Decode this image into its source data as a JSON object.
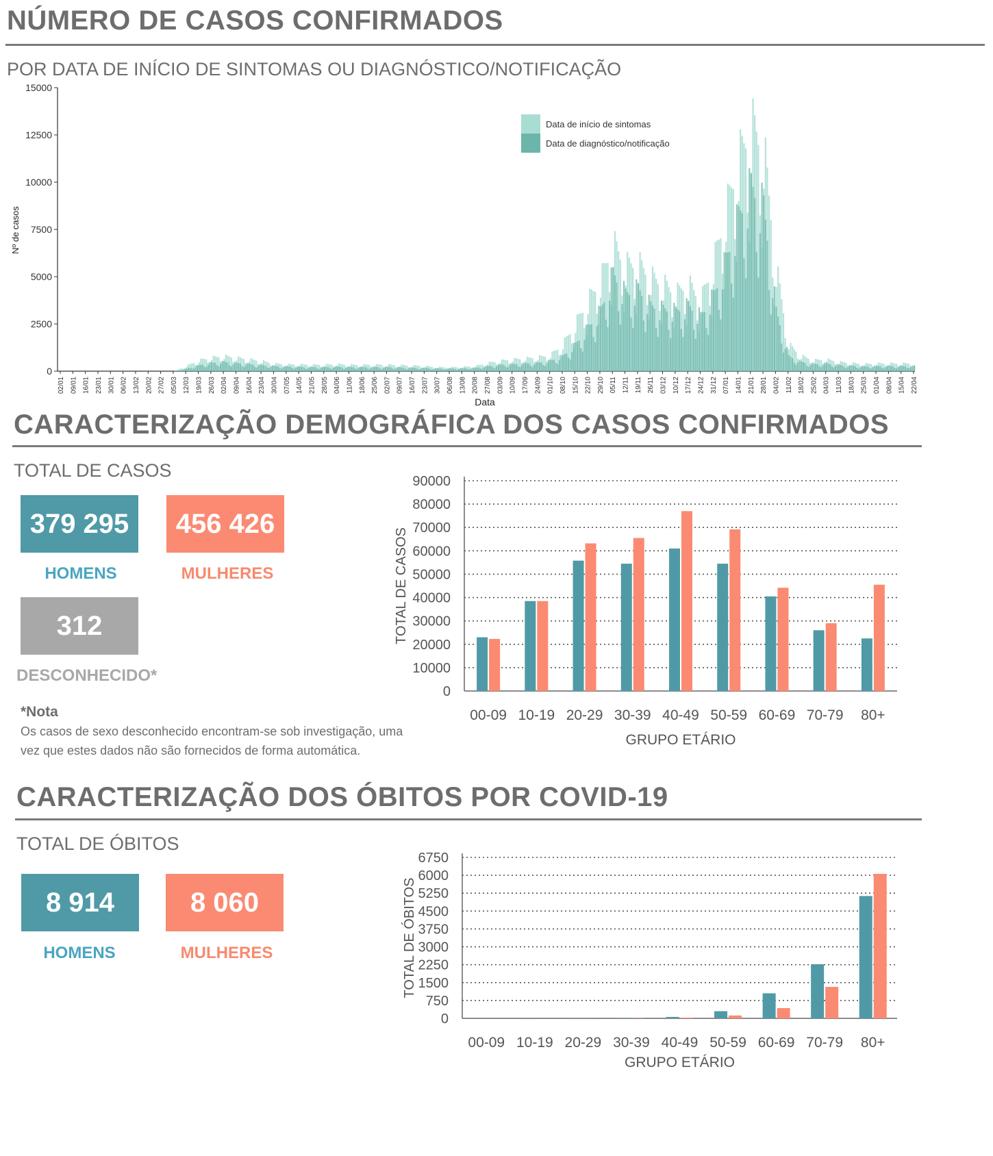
{
  "section1": {
    "title": "NÚMERO DE CASOS CONFIRMADOS",
    "subtitle": "POR DATA DE INÍCIO DE SINTOMAS OU DIAGNÓSTICO/NOTIFICAÇÃO"
  },
  "section2": {
    "title": "CARACTERIZAÇÃO DEMOGRÁFICA DOS CASOS CONFIRMADOS",
    "subtitle": "TOTAL DE CASOS",
    "men_value": "379 295",
    "men_label": "HOMENS",
    "women_value": "456 426",
    "women_label": "MULHERES",
    "unknown_value": "312",
    "unknown_label": "DESCONHECIDO*",
    "note_title": "*Nota",
    "note_text": "Os casos de sexo desconhecido encontram-se sob investigação, uma vez que estes dados não são fornecidos de forma automática."
  },
  "section3": {
    "title": "CARACTERIZAÇÃO DOS ÓBITOS POR COVID-19",
    "subtitle": "TOTAL DE ÓBITOS",
    "men_value": "8 914",
    "men_label": "HOMENS",
    "women_value": "8 060",
    "women_label": "MULHERES"
  },
  "colors": {
    "men": "#4f9aa6",
    "women": "#fb8a72",
    "unknown": "#a8a8a8",
    "symptom_onset": "#a8ddd4",
    "diagnosis": "#6cb5aa"
  },
  "chart_data": [
    {
      "type": "bar",
      "ylabel": "Nº de casos",
      "xlabel": "Data",
      "ylim": [
        0,
        15000
      ],
      "yticks": [
        0,
        2500,
        5000,
        7500,
        10000,
        12500,
        15000
      ],
      "x_ticks": [
        "02/01",
        "09/01",
        "16/01",
        "23/01",
        "30/01",
        "06/02",
        "13/02",
        "20/02",
        "27/02",
        "05/03",
        "12/03",
        "19/03",
        "26/03",
        "02/04",
        "09/04",
        "16/04",
        "23/04",
        "30/04",
        "07/05",
        "14/05",
        "21/05",
        "28/05",
        "04/06",
        "11/06",
        "18/06",
        "25/06",
        "02/07",
        "09/07",
        "16/07",
        "23/07",
        "30/07",
        "06/08",
        "13/08",
        "20/08",
        "27/08",
        "03/09",
        "10/09",
        "17/09",
        "24/09",
        "01/10",
        "08/10",
        "15/10",
        "22/10",
        "29/10",
        "05/11",
        "12/11",
        "19/11",
        "26/11",
        "03/12",
        "10/12",
        "17/12",
        "24/12",
        "31/12",
        "07/01",
        "14/01",
        "21/01",
        "28/01",
        "04/02",
        "11/02",
        "18/02",
        "25/02",
        "04/03",
        "11/03",
        "18/03",
        "25/03",
        "01/04",
        "08/04",
        "15/04",
        "22/04"
      ],
      "legend_position": "top-right",
      "series": [
        {
          "name": "Data de início de sintomas",
          "weekly_peak_values": [
            0,
            0,
            0,
            0,
            0,
            0,
            0,
            0,
            0,
            0,
            300,
            650,
            800,
            900,
            800,
            700,
            600,
            450,
            400,
            400,
            380,
            380,
            420,
            380,
            380,
            380,
            380,
            360,
            340,
            300,
            240,
            230,
            250,
            300,
            480,
            620,
            700,
            760,
            820,
            950,
            1600,
            2800,
            4200,
            5400,
            7600,
            6300,
            6400,
            5600,
            5200,
            4600,
            5200,
            4200,
            6400,
            9500,
            12500,
            14600,
            13400,
            6200,
            1600,
            900,
            650,
            700,
            550,
            480,
            420,
            460,
            460,
            460,
            460
          ]
        },
        {
          "name": "Data de diagnóstico/notificação",
          "weekly_peak_values": [
            0,
            0,
            0,
            0,
            0,
            0,
            0,
            0,
            0,
            0,
            150,
            350,
            500,
            550,
            480,
            420,
            360,
            300,
            280,
            260,
            240,
            240,
            260,
            240,
            240,
            240,
            240,
            220,
            200,
            190,
            160,
            160,
            170,
            200,
            300,
            380,
            420,
            460,
            500,
            620,
            900,
            1600,
            2600,
            3600,
            5800,
            4600,
            4900,
            3900,
            3700,
            3600,
            3900,
            3300,
            4500,
            6600,
            9200,
            11000,
            9800,
            3600,
            900,
            550,
            420,
            460,
            360,
            320,
            280,
            300,
            300,
            300,
            300
          ]
        }
      ]
    },
    {
      "type": "bar",
      "xlabel": "GRUPO ETÁRIO",
      "ylabel": "TOTAL DE CASOS",
      "ylim": [
        0,
        90000
      ],
      "yticks": [
        "0",
        "10000",
        "20000",
        "30000",
        "40000",
        "50000",
        "60000",
        "70000",
        "80000",
        "90000"
      ],
      "grid": true,
      "categories": [
        "00-09",
        "10-19",
        "20-29",
        "30-39",
        "40-49",
        "50-59",
        "60-69",
        "70-79",
        "80+"
      ],
      "series": [
        {
          "name": "HOMENS",
          "values": [
            23000,
            38500,
            55800,
            54500,
            61000,
            54500,
            40500,
            26000,
            22500
          ]
        },
        {
          "name": "MULHERES",
          "values": [
            22300,
            38500,
            63200,
            65500,
            77000,
            69200,
            44200,
            29000,
            45500
          ]
        }
      ]
    },
    {
      "type": "bar",
      "xlabel": "GRUPO ETÁRIO",
      "ylabel": "TOTAL DE ÓBITOS",
      "ylim": [
        0,
        6750
      ],
      "yticks": [
        "0",
        "750",
        "1500",
        "2250",
        "3000",
        "3750",
        "4500",
        "5250",
        "6000",
        "6750"
      ],
      "grid": true,
      "categories": [
        "00-09",
        "10-19",
        "20-29",
        "30-39",
        "40-49",
        "50-59",
        "60-69",
        "70-79",
        "80+"
      ],
      "series": [
        {
          "name": "HOMENS",
          "values": [
            0,
            1,
            3,
            12,
            60,
            300,
            1050,
            2270,
            5130
          ]
        },
        {
          "name": "MULHERES",
          "values": [
            0,
            0,
            2,
            8,
            30,
            120,
            430,
            1320,
            6060
          ]
        }
      ]
    }
  ]
}
